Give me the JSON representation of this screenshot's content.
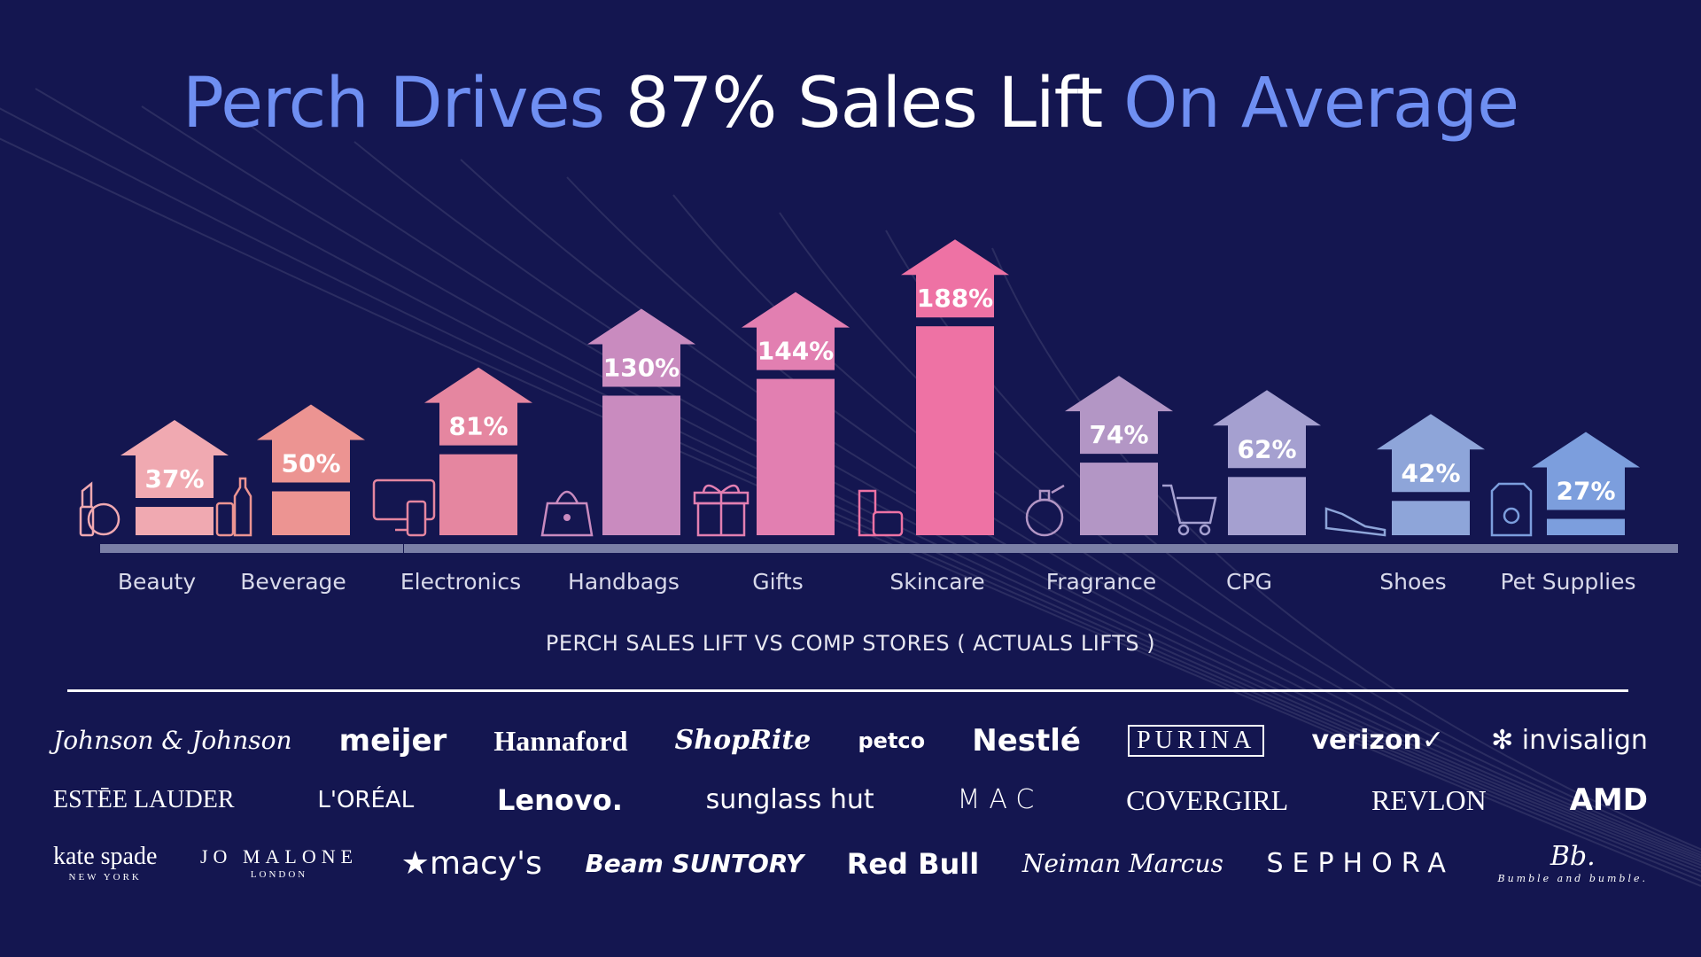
{
  "title": {
    "part1": "Perch Drives ",
    "part2": "87% Sales Lift",
    "part3": " On Average",
    "accent_color": "#6f8ff2"
  },
  "chart_data": {
    "type": "bar",
    "title": "Perch Drives 87% Sales Lift On Average",
    "xlabel": "PERCH SALES LIFT VS COMP STORES ( ACTUALS LIFTS )",
    "ylabel": "",
    "categories": [
      "Beauty",
      "Beverage",
      "Electronics",
      "Handbags",
      "Gifts",
      "Skincare",
      "Fragrance",
      "CPG",
      "Shoes",
      "Pet Supplies"
    ],
    "values": [
      37,
      50,
      81,
      130,
      144,
      188,
      74,
      62,
      42,
      27
    ],
    "data_labels": [
      "37%",
      "50%",
      "81%",
      "130%",
      "144%",
      "188%",
      "74%",
      "62%",
      "42%",
      "27%"
    ],
    "unit": "%",
    "colors": [
      "#f0a9b1",
      "#ec9492",
      "#e586a0",
      "#c98bbf",
      "#e27fb1",
      "#ee72a4",
      "#b396c5",
      "#a5a0d0",
      "#8ea5d9",
      "#7c9edd"
    ],
    "icons": [
      "lipstick-compact-icon",
      "bottle-can-icon",
      "monitor-phone-icon",
      "handbag-icon",
      "gift-icon",
      "skincare-tube-icon",
      "perfume-icon",
      "shopping-cart-icon",
      "sneaker-icon",
      "pet-food-bag-icon"
    ],
    "grid": false
  },
  "subtitle": "PERCH SALES LIFT VS COMP STORES ( ACTUALS LIFTS )",
  "logos": [
    [
      {
        "name": "Johnson & Johnson"
      },
      {
        "name": "meijer"
      },
      {
        "name": "Hannaford"
      },
      {
        "name": "ShopRite"
      },
      {
        "name": "petco"
      },
      {
        "name": "Nestlé"
      },
      {
        "name": "PURINA"
      },
      {
        "name": "verizon✓"
      },
      {
        "name": "✻ invisalign"
      }
    ],
    [
      {
        "name": "ESTĒE LAUDER"
      },
      {
        "name": "L'ORÉAL"
      },
      {
        "name": "Lenovo."
      },
      {
        "name": "sunglass hut"
      },
      {
        "name": "MAC"
      },
      {
        "name": "COVERGIRL"
      },
      {
        "name": "REVLON"
      },
      {
        "name": "AMD"
      }
    ],
    [
      {
        "name": "kate spade",
        "sub": "NEW YORK"
      },
      {
        "name": "JO MALONE",
        "sub": "LONDON"
      },
      {
        "name": "★macy's"
      },
      {
        "name": "Beam SUNTORY"
      },
      {
        "name": "Red Bull"
      },
      {
        "name": "Neiman Marcus"
      },
      {
        "name": "SEPHORA"
      },
      {
        "name": "Bb.",
        "sub": "Bumble and bumble."
      }
    ]
  ]
}
